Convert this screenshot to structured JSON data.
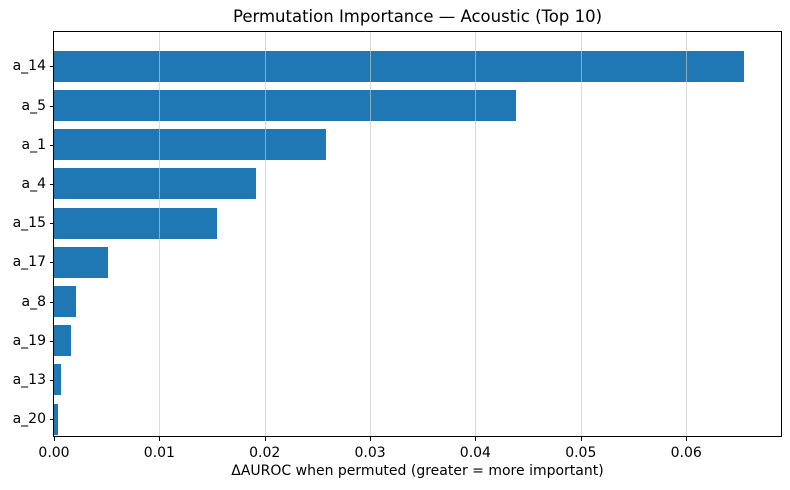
{
  "figure": {
    "background_color": "#ffffff"
  },
  "chart_data": {
    "type": "bar",
    "orientation": "horizontal",
    "title": "Permutation Importance — Acoustic (Top 10)",
    "xlabel": "ΔAUROC when permuted (greater = more important)",
    "ylabel": "",
    "categories": [
      "a_14",
      "a_5",
      "a_1",
      "a_4",
      "a_15",
      "a_17",
      "a_8",
      "a_19",
      "a_13",
      "a_20"
    ],
    "values": [
      0.0655,
      0.0438,
      0.0258,
      0.0192,
      0.0155,
      0.0051,
      0.0021,
      0.0016,
      0.0007,
      0.0004
    ],
    "xlim": [
      0,
      0.069
    ],
    "xticks": [
      0,
      0.01,
      0.02,
      0.03,
      0.04,
      0.05,
      0.06
    ],
    "xtick_labels": [
      "0.00",
      "0.01",
      "0.02",
      "0.03",
      "0.04",
      "0.05",
      "0.06"
    ],
    "grid": "vertical",
    "legend": "none",
    "bar_color": "#1f77b4",
    "grid_color": "rgba(200,200,200,0.65)",
    "axis_color": "#000000",
    "text_color": "#000000"
  }
}
